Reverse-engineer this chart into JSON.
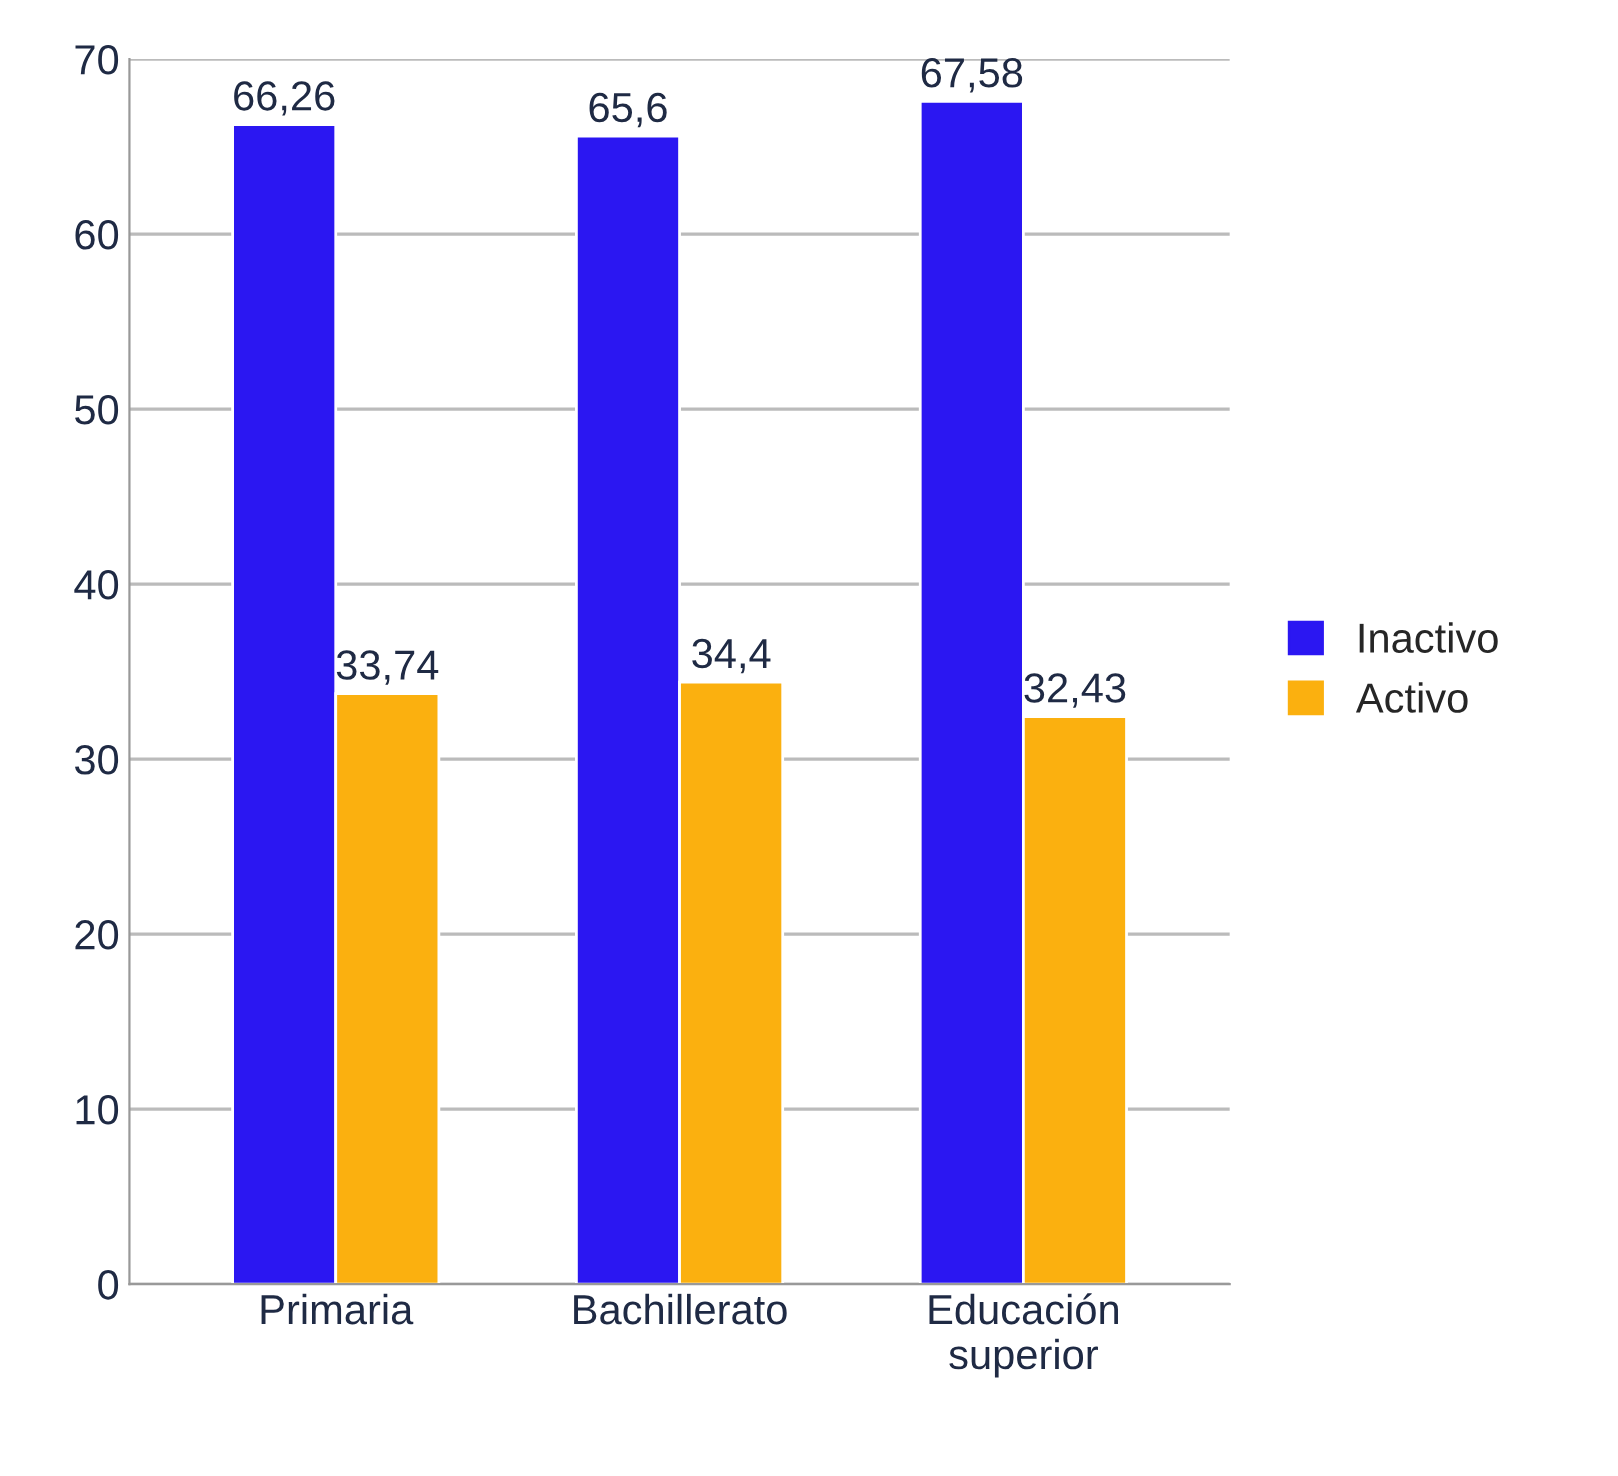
{
  "chart_data": {
    "type": "bar",
    "categories": [
      "Primaria",
      "Bachillerato",
      "Educación\nsuperior"
    ],
    "series": [
      {
        "name": "Inactivo",
        "color": "#2b17f2",
        "values": [
          66.26,
          65.6,
          67.58
        ],
        "value_labels": [
          "66,26",
          "65,6",
          "67,58"
        ]
      },
      {
        "name": "Activo",
        "color": "#fbb00f",
        "values": [
          33.74,
          34.4,
          32.43
        ],
        "value_labels": [
          "33,74",
          "34,4",
          "32,43"
        ]
      }
    ],
    "ylim": [
      0,
      70
    ],
    "yticks": [
      0,
      10,
      20,
      30,
      40,
      50,
      60,
      70
    ],
    "grid": "y",
    "legend": "right"
  }
}
